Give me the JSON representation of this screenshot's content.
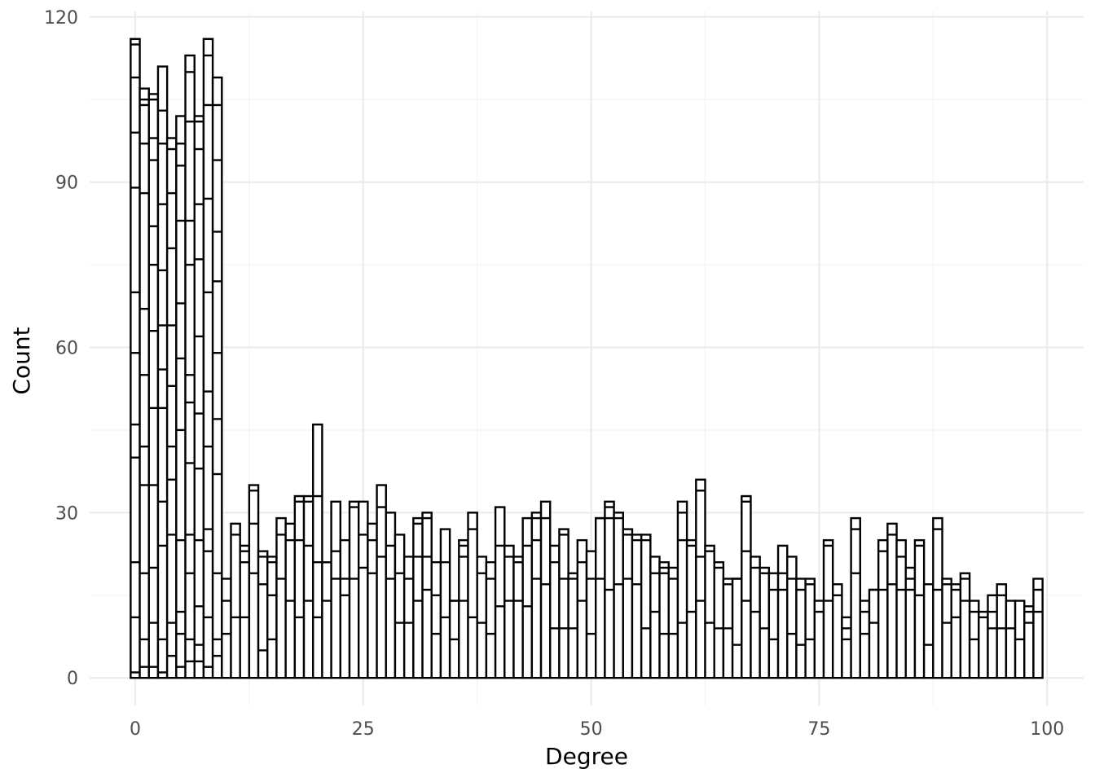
{
  "chart_data": {
    "type": "bar",
    "title": "",
    "xlabel": "Degree",
    "ylabel": "Count",
    "xlim": [
      -5,
      104
    ],
    "ylim": [
      -5,
      121
    ],
    "x_ticks": [
      0,
      25,
      50,
      75,
      100
    ],
    "y_ticks": [
      0,
      30,
      60,
      90,
      120
    ],
    "grid": true,
    "bar_fill": "#ffffff",
    "bar_stroke": "#000000",
    "categories": [
      0,
      1,
      2,
      3,
      4,
      5,
      6,
      7,
      8,
      9,
      10,
      11,
      12,
      13,
      14,
      15,
      16,
      17,
      18,
      19,
      20,
      21,
      22,
      23,
      24,
      25,
      26,
      27,
      28,
      29,
      30,
      31,
      32,
      33,
      34,
      35,
      36,
      37,
      38,
      39,
      40,
      41,
      42,
      43,
      44,
      45,
      46,
      47,
      48,
      49,
      50,
      51,
      52,
      53,
      54,
      55,
      56,
      57,
      58,
      59,
      60,
      61,
      62,
      63,
      64,
      65,
      66,
      67,
      68,
      69,
      70,
      71,
      72,
      73,
      74,
      75,
      76,
      77,
      78,
      79,
      80,
      81,
      82,
      83,
      84,
      85,
      86,
      87,
      88,
      89,
      90,
      91,
      92,
      93,
      94,
      95,
      96,
      97,
      98,
      99
    ],
    "values": [
      116,
      107,
      106,
      111,
      98,
      102,
      113,
      102,
      116,
      109,
      18,
      28,
      24,
      35,
      23,
      22,
      29,
      28,
      33,
      33,
      46,
      21,
      32,
      25,
      32,
      32,
      28,
      35,
      30,
      26,
      22,
      29,
      30,
      21,
      27,
      14,
      25,
      30,
      22,
      21,
      31,
      24,
      22,
      29,
      30,
      32,
      24,
      27,
      19,
      25,
      23,
      29,
      32,
      30,
      27,
      26,
      26,
      22,
      21,
      20,
      32,
      25,
      36,
      24,
      21,
      18,
      18,
      33,
      22,
      20,
      19,
      24,
      22,
      18,
      18,
      14,
      25,
      17,
      11,
      29,
      14,
      16,
      25,
      28,
      25,
      20,
      25,
      17,
      29,
      18,
      17,
      19,
      14,
      12,
      15,
      17,
      14,
      14,
      13,
      18
    ],
    "stacked_boundaries": [
      [
        1,
        11,
        21,
        40,
        46,
        59,
        70,
        89,
        99,
        109,
        115
      ],
      [
        2,
        7,
        19,
        35,
        42,
        55,
        67,
        88,
        97,
        104,
        105
      ],
      [
        2,
        10,
        20,
        35,
        49,
        63,
        75,
        82,
        94,
        98,
        105
      ],
      [
        1,
        7,
        24,
        32,
        49,
        56,
        64,
        74,
        86,
        97,
        103
      ],
      [
        4,
        10,
        26,
        36,
        42,
        53,
        64,
        78,
        88,
        96
      ],
      [
        2,
        8,
        12,
        25,
        45,
        58,
        68,
        83,
        93,
        97
      ],
      [
        3,
        7,
        19,
        26,
        39,
        50,
        55,
        75,
        83,
        101,
        110
      ],
      [
        3,
        6,
        13,
        25,
        38,
        48,
        62,
        76,
        86,
        96,
        101
      ],
      [
        2,
        11,
        23,
        27,
        42,
        52,
        70,
        87,
        104,
        113
      ],
      [
        4,
        7,
        19,
        37,
        47,
        59,
        72,
        81,
        94,
        104
      ],
      [
        8,
        14
      ],
      [
        11,
        26
      ],
      [
        11,
        21,
        23
      ],
      [
        19,
        28,
        34
      ],
      [
        5,
        17,
        22
      ],
      [
        7,
        15,
        21
      ],
      [
        18,
        26
      ],
      [
        14,
        25
      ],
      [
        11,
        25,
        32
      ],
      [
        14,
        24,
        32
      ],
      [
        11,
        21,
        33
      ],
      [
        14,
        21
      ],
      [
        18,
        23
      ],
      [
        15,
        18
      ],
      [
        18,
        31
      ],
      [
        20,
        26
      ],
      [
        19,
        25
      ],
      [
        22,
        31
      ],
      [
        18,
        24
      ],
      [
        10,
        19
      ],
      [
        10,
        18
      ],
      [
        14,
        22,
        28
      ],
      [
        16,
        22,
        29
      ],
      [
        8,
        15
      ],
      [
        11,
        21
      ],
      [
        7,
        14
      ],
      [
        14,
        22,
        24
      ],
      [
        11,
        27
      ],
      [
        10,
        19
      ],
      [
        8,
        18
      ],
      [
        13,
        24
      ],
      [
        14,
        22
      ],
      [
        14,
        21
      ],
      [
        13,
        24
      ],
      [
        18,
        25,
        29
      ],
      [
        17,
        29
      ],
      [
        9,
        21
      ],
      [
        9,
        18,
        26
      ],
      [
        9,
        18
      ],
      [
        14,
        21
      ],
      [
        8,
        18
      ],
      [
        18,
        29
      ],
      [
        16,
        29,
        31
      ],
      [
        17,
        29
      ],
      [
        18,
        26
      ],
      [
        17,
        25
      ],
      [
        9,
        25
      ],
      [
        12,
        19
      ],
      [
        8,
        19,
        20
      ],
      [
        8,
        18
      ],
      [
        10,
        25,
        30
      ],
      [
        12,
        24
      ],
      [
        14,
        22,
        34
      ],
      [
        10,
        23
      ],
      [
        9,
        20
      ],
      [
        9,
        17
      ],
      [
        6,
        18
      ],
      [
        14,
        23,
        32
      ],
      [
        12,
        20
      ],
      [
        9,
        19
      ],
      [
        7,
        16
      ],
      [
        16,
        19
      ],
      [
        8,
        18
      ],
      [
        6,
        16
      ],
      [
        7,
        17
      ],
      [
        12
      ],
      [
        14,
        24
      ],
      [
        15
      ],
      [
        7,
        9
      ],
      [
        19,
        27
      ],
      [
        8,
        12
      ],
      [
        10,
        16
      ],
      [
        16,
        23
      ],
      [
        17,
        26
      ],
      [
        16,
        22
      ],
      [
        16,
        18
      ],
      [
        15,
        24
      ],
      [
        6
      ],
      [
        16,
        27
      ],
      [
        10,
        17
      ],
      [
        11,
        16
      ],
      [
        14,
        18
      ],
      [
        7,
        12
      ],
      [
        11
      ],
      [
        9,
        12
      ],
      [
        9,
        15
      ],
      [
        9
      ],
      [
        7
      ],
      [
        10,
        12
      ],
      [
        12,
        16
      ]
    ]
  }
}
